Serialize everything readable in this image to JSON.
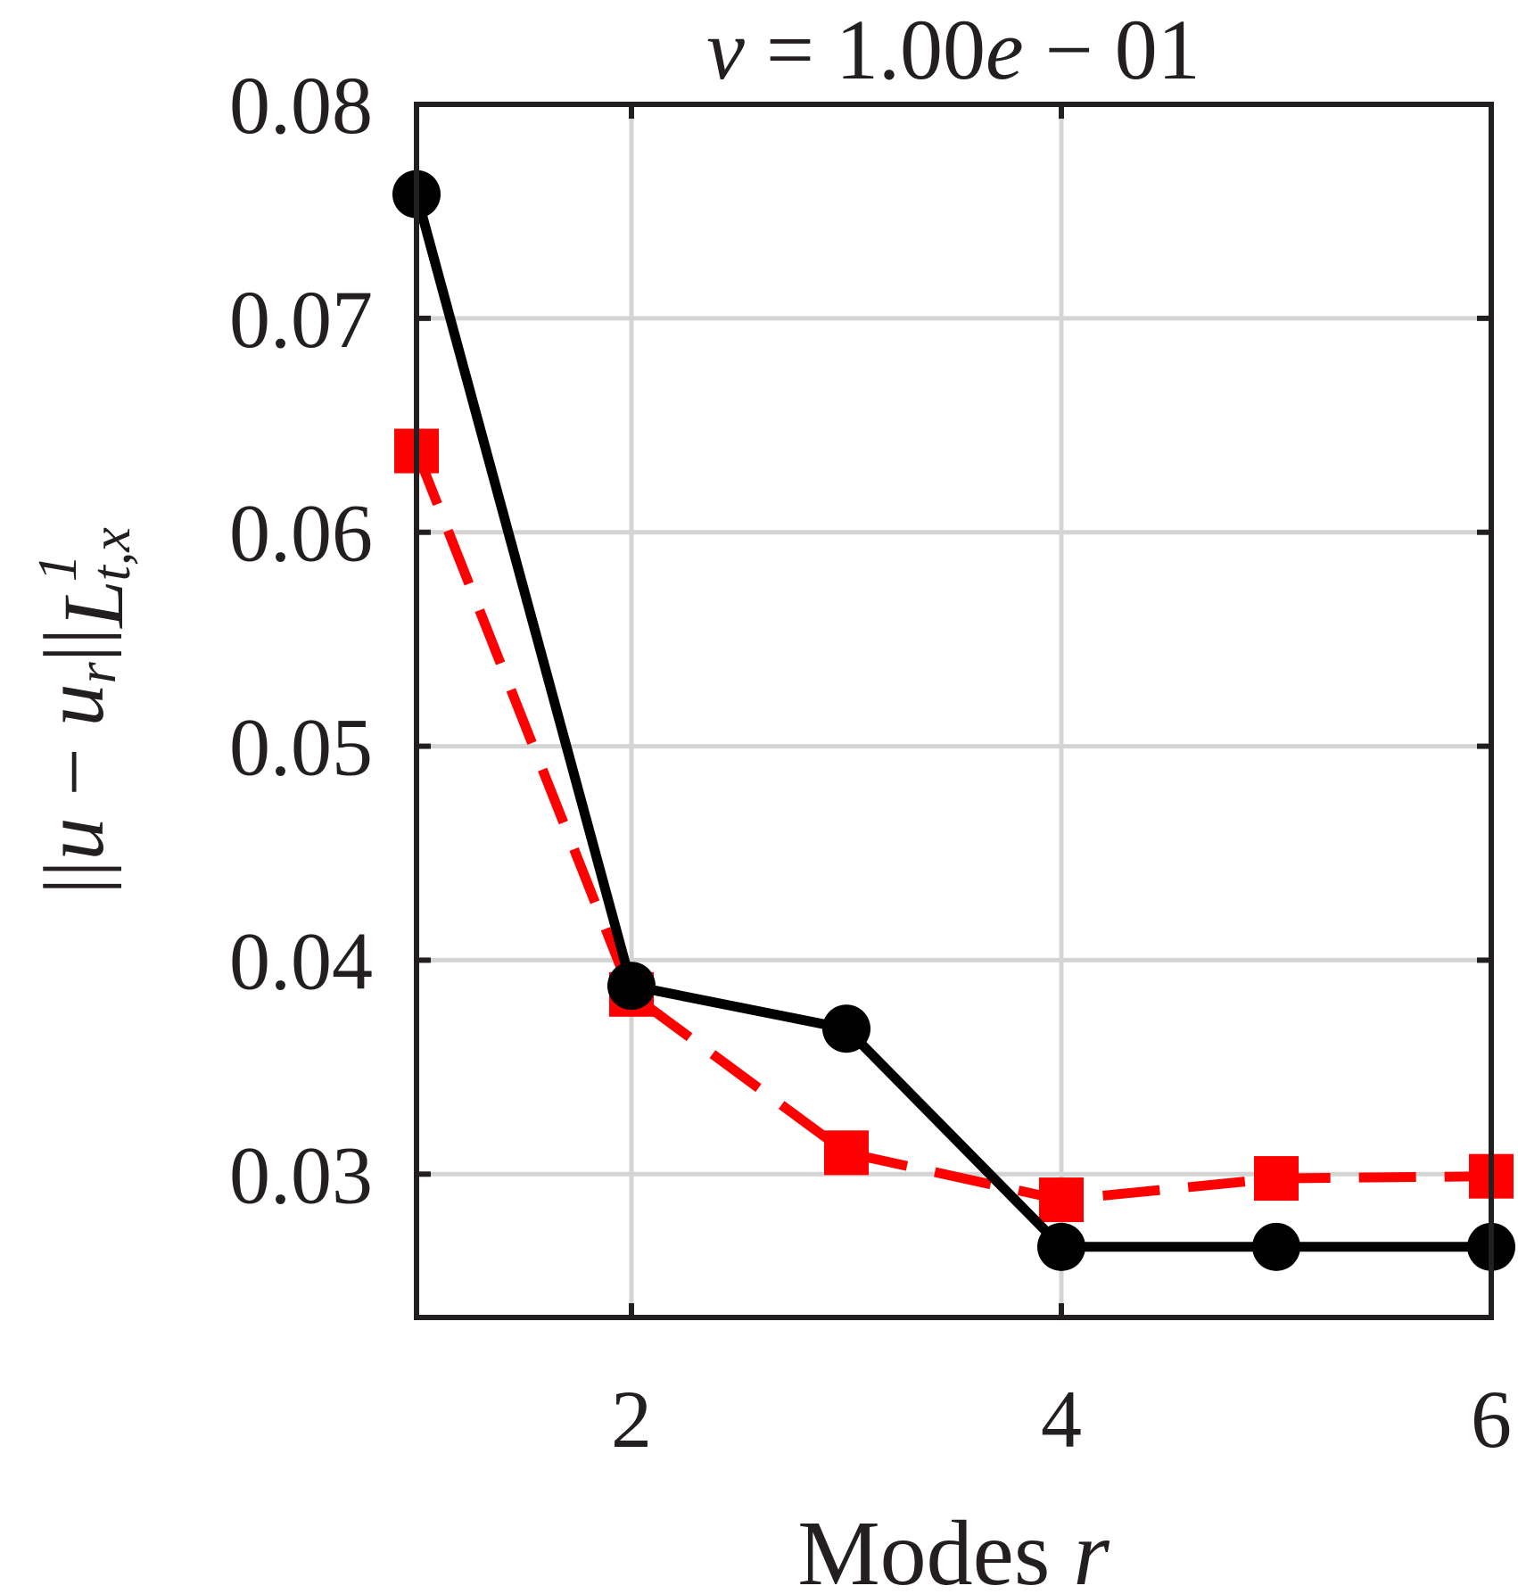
{
  "chart_data": {
    "type": "line",
    "title": "ν = 1.00e − 01",
    "xlabel": "Modes r",
    "ylabel": "||u − u_r||_{L^1_{t,x}}",
    "x_ticks": [
      2,
      4,
      6
    ],
    "y_ticks": [
      0.03,
      0.04,
      0.05,
      0.06,
      0.07,
      0.08
    ],
    "x_tick_labels": [
      "2",
      "4",
      "6"
    ],
    "y_tick_labels": [
      "0.03",
      "0.04",
      "0.05",
      "0.06",
      "0.07",
      "0.08"
    ],
    "xlim": [
      1,
      6
    ],
    "ylim": [
      0.0233,
      0.08
    ],
    "grid": true,
    "series": [
      {
        "name": "black-circles",
        "color": "#000000",
        "line_style": "solid",
        "marker": "circle",
        "x": [
          1,
          2,
          3,
          4,
          5,
          6
        ],
        "values": [
          0.0758,
          0.0388,
          0.0368,
          0.0266,
          0.0266,
          0.0266
        ]
      },
      {
        "name": "red-squares",
        "color": "#ff0000",
        "line_style": "dashed",
        "marker": "square",
        "x": [
          1,
          2,
          3,
          4,
          5,
          6
        ],
        "values": [
          0.0638,
          0.0384,
          0.031,
          0.0288,
          0.0298,
          0.0299
        ]
      }
    ],
    "labels": {
      "title_nu": "ν",
      "title_eq": "=",
      "title_val": "1.00",
      "title_e": "e",
      "title_minus": "−",
      "title_exp": "01",
      "xlabel_word": "Modes",
      "xlabel_var": "r",
      "ylabel_u": "u",
      "ylabel_minus": "−",
      "ylabel_ur": "u",
      "ylabel_r_sub": "r",
      "ylabel_norm": "||",
      "ylabel_L": "L",
      "ylabel_sup": "1",
      "ylabel_sub": "t,x"
    }
  }
}
